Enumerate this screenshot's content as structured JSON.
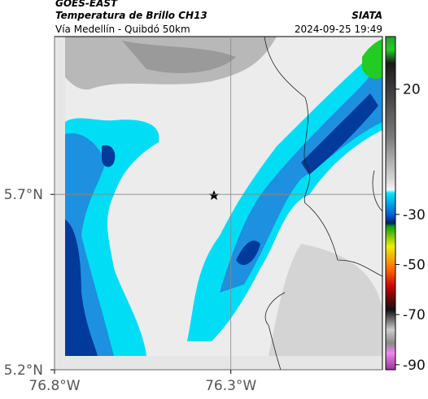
{
  "header": {
    "title": "GOES-EAST",
    "subtitle": "Temperatura de Brillo CH13",
    "route": "Vía Medellín - Quibdó 50km",
    "source": "SIATA",
    "timestamp": "2024-09-25 19:49"
  },
  "map": {
    "xlim": [
      -76.8,
      -75.87
    ],
    "ylim": [
      5.2,
      6.15
    ],
    "xticks": [
      {
        "value": -76.8,
        "label": "76.8°W"
      },
      {
        "value": -76.3,
        "label": "76.3°W"
      }
    ],
    "yticks": [
      {
        "value": 5.2,
        "label": "5.2°N"
      },
      {
        "value": 5.7,
        "label": "5.7°N"
      }
    ],
    "grid": true
  },
  "colorbar": {
    "lim": [
      -92,
      41
    ],
    "ticks": [
      20,
      -30,
      -50,
      -70,
      -90
    ]
  }
}
